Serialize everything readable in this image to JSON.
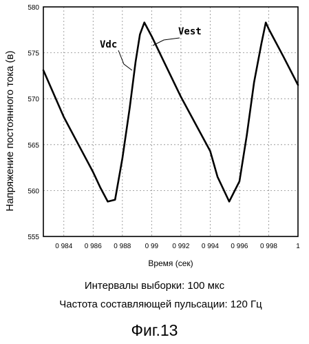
{
  "chart_data": {
    "type": "line",
    "title": "",
    "xlabel": "Время (сек)",
    "ylabel": "Напряжение постоянного тока (в)",
    "xlim": [
      0.9826,
      1.0
    ],
    "ylim": [
      555,
      580
    ],
    "x_ticks": [
      0.984,
      0.986,
      0.988,
      0.99,
      0.992,
      0.994,
      0.996,
      0.998,
      1.0
    ],
    "x_tick_labels": [
      "0 984",
      "0 986",
      "0 988",
      "0 99",
      "0 992",
      "0 994",
      "0 996",
      "0 998",
      "1"
    ],
    "y_ticks": [
      555,
      560,
      565,
      570,
      575,
      580
    ],
    "grid": true,
    "legend": "none",
    "series": [
      {
        "name": "Vdc",
        "x": [
          0.9826,
          0.984,
          0.985,
          0.986,
          0.9865,
          0.987,
          0.9875,
          0.988,
          0.9885,
          0.9889,
          0.9892,
          0.9895,
          0.99,
          0.992,
          0.994,
          0.9945,
          0.9953,
          0.996,
          0.9965,
          0.997,
          0.9975,
          0.9978,
          0.998,
          0.999,
          1.0
        ],
        "y": [
          573.1,
          568.0,
          565.0,
          562.0,
          560.3,
          558.8,
          559.0,
          563.5,
          569.0,
          574.0,
          577.0,
          578.3,
          576.8,
          570.2,
          564.3,
          561.5,
          558.8,
          561.0,
          566.0,
          571.8,
          576.0,
          578.3,
          577.6,
          574.6,
          571.5
        ]
      },
      {
        "name": "Vest",
        "x": [
          0.9826,
          0.984,
          0.985,
          0.986,
          0.9865,
          0.987,
          0.9875,
          0.988,
          0.9885,
          0.9889,
          0.9892,
          0.9895,
          0.99,
          0.992,
          0.994,
          0.9945,
          0.9953,
          0.996,
          0.9965,
          0.997,
          0.9975,
          0.9978,
          0.998,
          0.999,
          1.0
        ],
        "y": [
          573.1,
          568.0,
          565.0,
          562.0,
          560.3,
          558.8,
          559.0,
          563.5,
          569.0,
          574.0,
          577.0,
          578.3,
          576.8,
          570.2,
          564.3,
          561.5,
          558.8,
          561.0,
          566.0,
          571.8,
          576.0,
          578.3,
          577.6,
          574.6,
          571.5
        ]
      }
    ],
    "annotations": [
      "Vdc",
      "Vest"
    ]
  },
  "captions": {
    "line1": "Интервалы выборки: 100 мкс",
    "line2": "Частота составляющей пульсации: 120 Гц",
    "figure": "Фиг.13"
  }
}
